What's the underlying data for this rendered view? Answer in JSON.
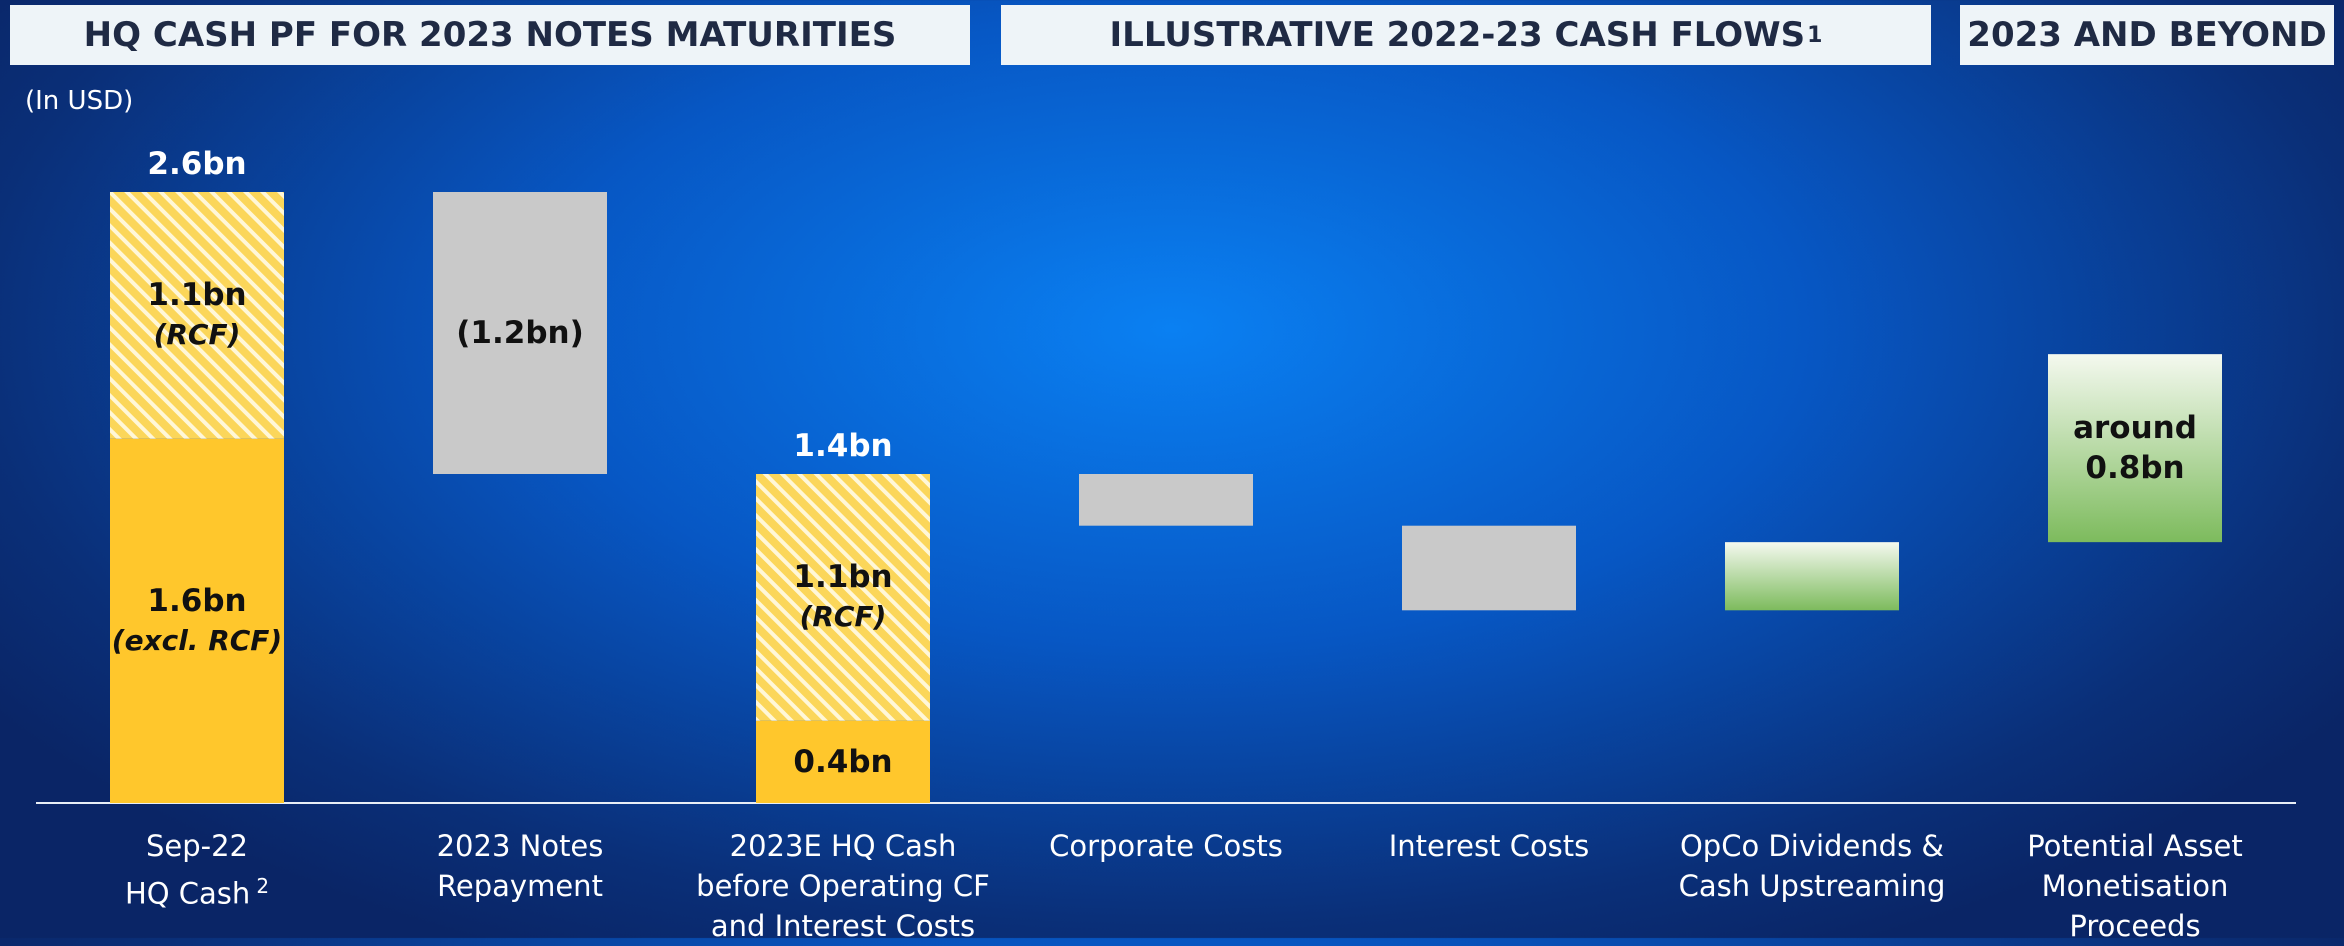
{
  "headers": [
    {
      "title": "HQ CASH PF FOR 2023 NOTES MATURITIES"
    },
    {
      "title": "ILLUSTRATIVE 2022-23 CASH FLOWS",
      "footnote": "1"
    },
    {
      "title": "2023 AND BEYOND"
    }
  ],
  "chart_data": {
    "type": "waterfall",
    "unit_note": "(In USD)",
    "categories": [
      "Sep-22\nHQ Cash",
      "2023 Notes\nRepayment",
      "2023E HQ Cash\nbefore Operating CF\nand Interest Costs",
      "Corporate Costs",
      "Interest Costs",
      "OpCo Dividends &\nCash Upstreaming",
      "Potential Asset\nMonetisation\nProceeds"
    ],
    "category_footnotes": [
      "2",
      null,
      null,
      null,
      null,
      null,
      null
    ],
    "ylim": [
      0,
      2.6
    ],
    "colors": {
      "solid": "#ffc72c",
      "hatched": "#fbd65a",
      "decrease": "#c9c9c9",
      "increase": "#7dbb5d"
    },
    "bars": [
      {
        "kind": "total",
        "total": 2.6,
        "total_label": "2.6bn",
        "segments": [
          {
            "value": 1.55,
            "value_label": "1.6bn",
            "note": "(excl. RCF)",
            "style": "solid"
          },
          {
            "value": 1.05,
            "value_label": "1.1bn",
            "note": "(RCF)",
            "style": "hatched"
          }
        ]
      },
      {
        "kind": "decrease",
        "value": -1.2,
        "value_label": "(1.2bn)"
      },
      {
        "kind": "total",
        "total": 1.4,
        "total_label": "1.4bn",
        "segments": [
          {
            "value": 0.35,
            "value_label": "0.4bn",
            "style": "solid"
          },
          {
            "value": 1.05,
            "value_label": "1.1bn",
            "note": "(RCF)",
            "style": "hatched"
          }
        ]
      },
      {
        "kind": "decrease",
        "value": -0.22
      },
      {
        "kind": "decrease",
        "value": -0.36
      },
      {
        "kind": "increase",
        "value": 0.29
      },
      {
        "kind": "increase",
        "value": 0.8,
        "value_label": "around\n0.8bn"
      }
    ]
  }
}
